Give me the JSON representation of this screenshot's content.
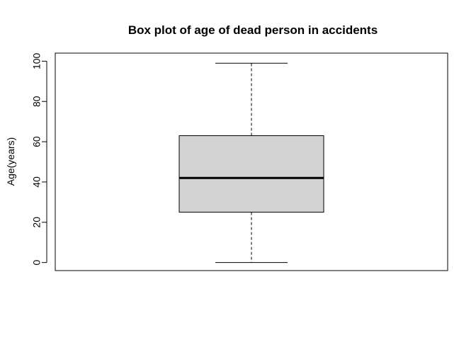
{
  "chart_data": {
    "type": "box",
    "title": "Box plot of age of dead person in accidents",
    "xlabel": "",
    "ylabel": "Age(years)",
    "ylim": [
      -4,
      104
    ],
    "yticks": [
      0,
      20,
      40,
      60,
      80,
      100
    ],
    "grid": false,
    "box": {
      "min": 0,
      "q1": 25,
      "median": 42,
      "q3": 63,
      "max": 99
    },
    "colors": {
      "box_fill": "#d3d3d3",
      "stroke": "#000000",
      "background": "#ffffff"
    }
  }
}
